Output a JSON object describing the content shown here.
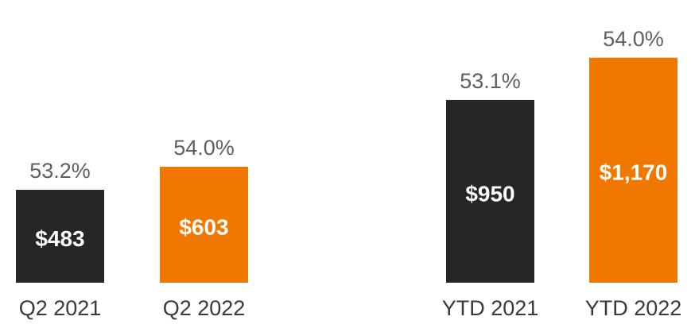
{
  "chart_data": {
    "type": "bar",
    "categories": [
      "Q2 2021",
      "Q2 2022",
      "YTD 2021",
      "YTD 2022"
    ],
    "values": [
      483,
      603,
      950,
      1170
    ],
    "value_labels": [
      "$483",
      "$603",
      "$950",
      "$1,170"
    ],
    "annotations": [
      "53.2%",
      "54.0%",
      "53.1%",
      "54.0%"
    ],
    "colors": [
      "#262626",
      "#f07800",
      "#262626",
      "#f07800"
    ],
    "ylim": [
      0,
      1470
    ]
  }
}
